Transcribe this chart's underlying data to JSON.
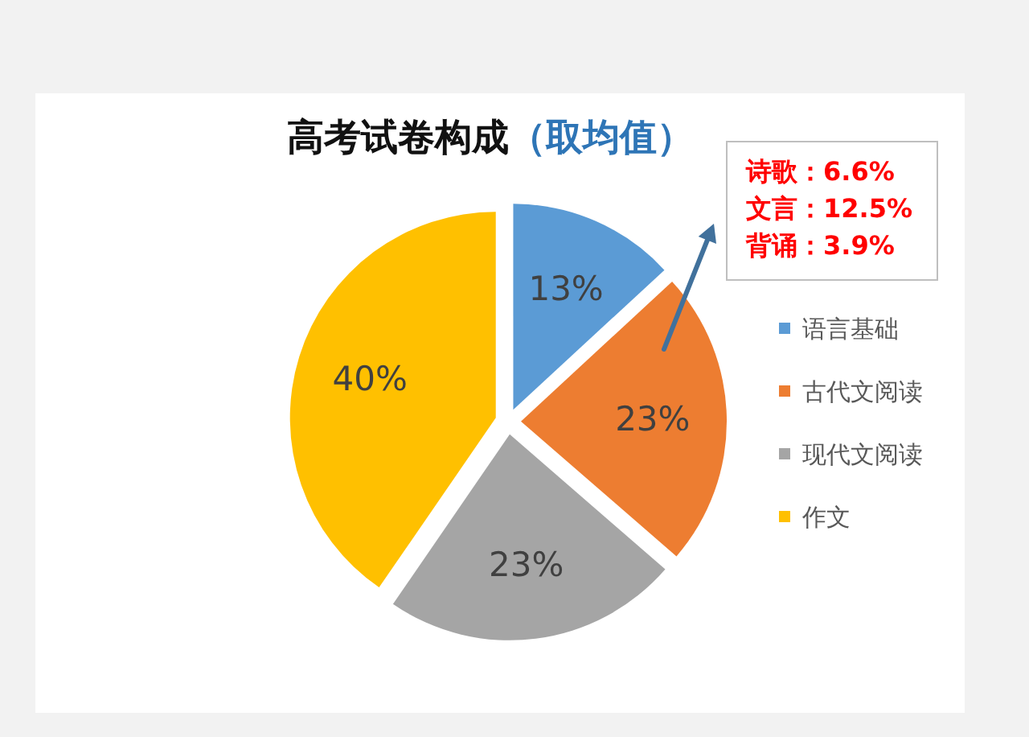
{
  "chart_data": {
    "type": "pie",
    "title": "高考试卷构成",
    "subtitle": "（取均值）",
    "categories": [
      "语言基础",
      "古代文阅读",
      "现代文阅读",
      "作文"
    ],
    "values": [
      13,
      23,
      23,
      40
    ],
    "colors": [
      "#5b9bd5",
      "#ed7d31",
      "#a5a5a5",
      "#ffc000"
    ],
    "value_labels": [
      "13%",
      "23%",
      "23%",
      "40%"
    ],
    "legend": "right",
    "annotations": [
      "诗歌：6.6%",
      "文言：12.5%",
      "背诵：3.9%"
    ]
  }
}
